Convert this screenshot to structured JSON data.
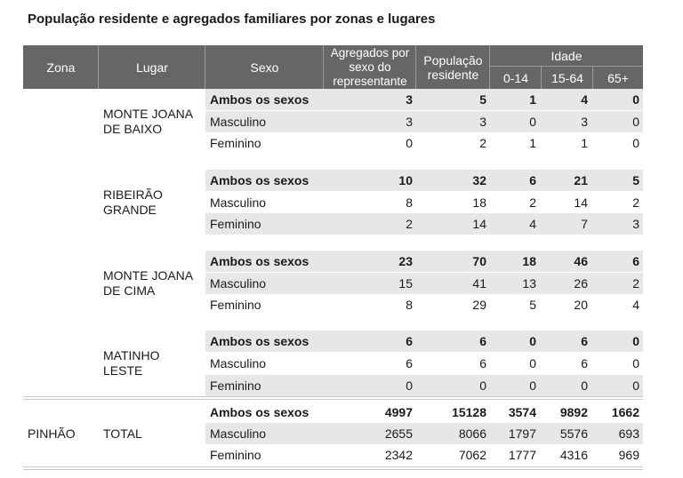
{
  "title": "População residente e agregados familiares por zonas e lugares",
  "headers": {
    "zona": "Zona",
    "lugar": "Lugar",
    "sexo": "Sexo",
    "agregados": "Agregados por sexo do representante",
    "populacao": "População residente",
    "idade": "Idade",
    "age_0_14": "0-14",
    "age_15_64": "15-64",
    "age_65": "65+"
  },
  "groups": [
    {
      "zona": "",
      "lugar": "MONTE JOANA DE BAIXO",
      "rows": [
        {
          "sexo": "Ambos os sexos",
          "agregados": "3",
          "populacao": "5",
          "a0": "1",
          "a15": "4",
          "a65": "0"
        },
        {
          "sexo": "Masculino",
          "agregados": "3",
          "populacao": "3",
          "a0": "0",
          "a15": "3",
          "a65": "0"
        },
        {
          "sexo": "Feminino",
          "agregados": "0",
          "populacao": "2",
          "a0": "1",
          "a15": "1",
          "a65": "0"
        }
      ]
    },
    {
      "zona": "",
      "lugar": "RIBEIRÃO GRANDE",
      "rows": [
        {
          "sexo": "Ambos os sexos",
          "agregados": "10",
          "populacao": "32",
          "a0": "6",
          "a15": "21",
          "a65": "5"
        },
        {
          "sexo": "Masculino",
          "agregados": "8",
          "populacao": "18",
          "a0": "2",
          "a15": "14",
          "a65": "2"
        },
        {
          "sexo": "Feminino",
          "agregados": "2",
          "populacao": "14",
          "a0": "4",
          "a15": "7",
          "a65": "3"
        }
      ]
    },
    {
      "zona": "",
      "lugar": "MONTE JOANA DE CIMA",
      "rows": [
        {
          "sexo": "Ambos os sexos",
          "agregados": "23",
          "populacao": "70",
          "a0": "18",
          "a15": "46",
          "a65": "6"
        },
        {
          "sexo": "Masculino",
          "agregados": "15",
          "populacao": "41",
          "a0": "13",
          "a15": "26",
          "a65": "2"
        },
        {
          "sexo": "Feminino",
          "agregados": "8",
          "populacao": "29",
          "a0": "5",
          "a15": "20",
          "a65": "4"
        }
      ]
    },
    {
      "zona": "",
      "lugar": "MATINHO LESTE",
      "rows": [
        {
          "sexo": "Ambos os sexos",
          "agregados": "6",
          "populacao": "6",
          "a0": "0",
          "a15": "6",
          "a65": "0"
        },
        {
          "sexo": "Masculino",
          "agregados": "6",
          "populacao": "6",
          "a0": "0",
          "a15": "6",
          "a65": "0"
        },
        {
          "sexo": "Feminino",
          "agregados": "0",
          "populacao": "0",
          "a0": "0",
          "a15": "0",
          "a65": "0"
        }
      ]
    },
    {
      "zona": "PINHÃO",
      "lugar": "TOTAL",
      "rows": [
        {
          "sexo": "Ambos os sexos",
          "agregados": "4997",
          "populacao": "15128",
          "a0": "3574",
          "a15": "9892",
          "a65": "1662"
        },
        {
          "sexo": "Masculino",
          "agregados": "2655",
          "populacao": "8066",
          "a0": "1797",
          "a15": "5576",
          "a65": "693"
        },
        {
          "sexo": "Feminino",
          "agregados": "2342",
          "populacao": "7062",
          "a0": "1777",
          "a15": "4316",
          "a65": "969"
        }
      ]
    }
  ]
}
